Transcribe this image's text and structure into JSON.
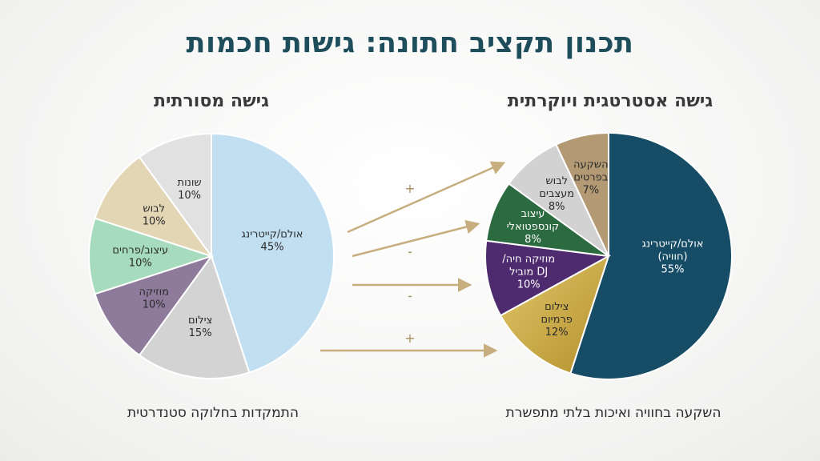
{
  "title": "תכנון תקציב חתונה: גישות חכמות",
  "chart_data": [
    {
      "type": "pie",
      "title": "גישה מסורתית",
      "caption": "התמקדות בחלוקה סטנדרטית",
      "slices": [
        {
          "label": "אולם/קייטרינג",
          "pct_label": "45%",
          "value": 45,
          "color": "#c2dff1"
        },
        {
          "label": "צילום",
          "pct_label": "15%",
          "value": 15,
          "color": "#d3d3d3"
        },
        {
          "label": "מוזיקה",
          "pct_label": "10%",
          "value": 10,
          "color": "#8e7a9a"
        },
        {
          "label": "עיצוב/פרחים",
          "pct_label": "10%",
          "value": 10,
          "color": "#a6dcbd"
        },
        {
          "label": "לבוש",
          "pct_label": "10%",
          "value": 10,
          "color": "#e3d6b5"
        },
        {
          "label": "שונות",
          "pct_label": "10%",
          "value": 10,
          "color": "#e1e1e1"
        }
      ]
    },
    {
      "type": "pie",
      "title": "גישה אסטרטגית ויוקרתית",
      "caption": "השקעה בחוויה ואיכות בלתי מתפשרת",
      "slices": [
        {
          "label": "אולם/קייטרינג|(חוויה)",
          "pct_label": "55%",
          "value": 55,
          "color": "#164c66"
        },
        {
          "label": "צילום|פרמיום",
          "pct_label": "12%",
          "value": 12,
          "color": "#c8a93f"
        },
        {
          "label": "מוזיקה חיה/|DJ מוביל",
          "pct_label": "10%",
          "value": 10,
          "color": "#4e2a6e"
        },
        {
          "label": "עיצוב|קונספטואלי",
          "pct_label": "8%",
          "value": 8,
          "color": "#2c6a40"
        },
        {
          "label": "לבוש|מעצבים",
          "pct_label": "8%",
          "value": 8,
          "color": "#d2d2d2"
        },
        {
          "label": "השקעה|בפרטים",
          "pct_label": "7%",
          "value": 7,
          "color": "#b39a74"
        }
      ]
    }
  ],
  "arrows": [
    {
      "sign": "+"
    },
    {
      "sign": "-"
    },
    {
      "sign": "-"
    },
    {
      "sign": "+"
    }
  ],
  "colors": {
    "title": "#1e4d5c",
    "arrow": "#c6ae7e"
  }
}
